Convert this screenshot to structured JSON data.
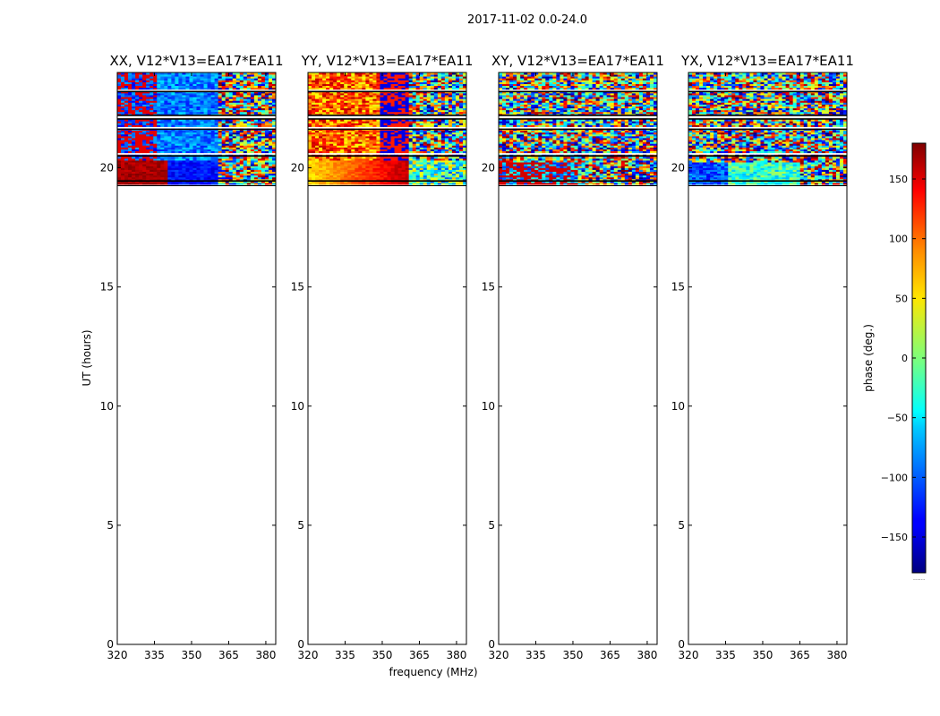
{
  "figure": {
    "suptitle": "2017-11-02 0.0-24.0"
  },
  "chart_data": [
    {
      "type": "heatmap",
      "title": "XX, V12*V13=EA17*EA11",
      "xlabel": "",
      "ylabel": "UT (hours)",
      "xlim": [
        320,
        384
      ],
      "ylim": [
        0,
        24
      ],
      "xticks": [
        320,
        335,
        350,
        365,
        380
      ],
      "yticks": [
        0,
        5,
        10,
        15,
        20
      ],
      "data_hours": [
        19.3,
        24.0
      ],
      "pattern": "xx"
    },
    {
      "type": "heatmap",
      "title": "YY, V12*V13=EA17*EA11",
      "xlabel": "frequency (MHz)",
      "ylabel": "",
      "xlim": [
        320,
        384
      ],
      "ylim": [
        0,
        24
      ],
      "xticks": [
        320,
        335,
        350,
        365,
        380
      ],
      "yticks": [
        0,
        5,
        10,
        15,
        20
      ],
      "data_hours": [
        19.3,
        24.0
      ],
      "pattern": "yy"
    },
    {
      "type": "heatmap",
      "title": "XY, V12*V13=EA17*EA11",
      "xlabel": "",
      "ylabel": "",
      "xlim": [
        320,
        384
      ],
      "ylim": [
        0,
        24
      ],
      "xticks": [
        320,
        335,
        350,
        365,
        380
      ],
      "yticks": [
        0,
        5,
        10,
        15,
        20
      ],
      "data_hours": [
        19.3,
        24.0
      ],
      "pattern": "xy"
    },
    {
      "type": "heatmap",
      "title": "YX, V12*V13=EA17*EA11",
      "xlabel": "",
      "ylabel": "",
      "xlim": [
        320,
        384
      ],
      "ylim": [
        0,
        24
      ],
      "xticks": [
        320,
        335,
        350,
        365,
        380
      ],
      "yticks": [
        0,
        5,
        10,
        15,
        20
      ],
      "data_hours": [
        19.3,
        24.0
      ],
      "pattern": "yx"
    }
  ],
  "colorbar": {
    "label": "phase (deg.)",
    "range": [
      -180,
      180
    ],
    "ticks": [
      -150,
      -100,
      -50,
      0,
      50,
      100,
      150
    ],
    "footer": "......"
  }
}
